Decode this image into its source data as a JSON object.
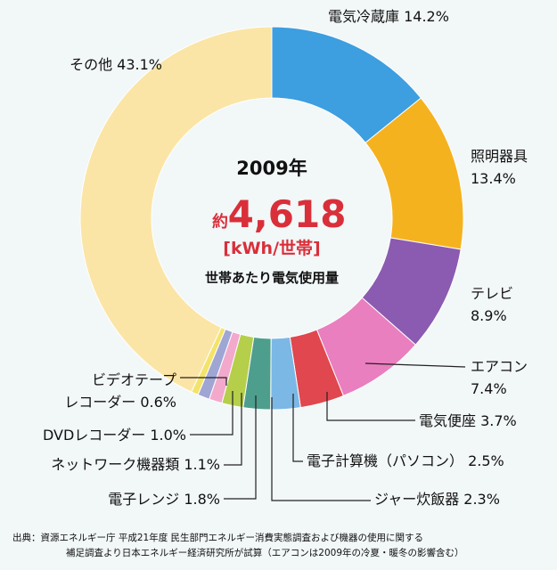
{
  "chart_data": {
    "type": "pie",
    "categories": [
      "電気冷蔵庫",
      "照明器具",
      "テレビ",
      "エアコン",
      "電気便座",
      "電子計算機（パソコン）",
      "ジャー炊飯器",
      "電子レンジ",
      "ネットワーク機器類",
      "DVDレコーダー",
      "ビデオテープ\nレコーダー",
      "その他"
    ],
    "values": [
      14.2,
      13.4,
      8.9,
      7.4,
      3.7,
      2.5,
      2.3,
      1.8,
      1.1,
      1.0,
      0.6,
      43.1
    ],
    "value_labels": [
      "14.2%",
      "13.4%",
      "8.9%",
      "7.4%",
      "3.7%",
      "2.5%",
      "2.3%",
      "1.8%",
      "1.1%",
      "1.0%",
      "0.6%",
      "43.1%"
    ],
    "colors": [
      "#3d9ee0",
      "#f5b21f",
      "#8a5bb0",
      "#e97fbf",
      "#e0474e",
      "#7bb8e6",
      "#4e9e8e",
      "#b5cf4a",
      "#f2a9cc",
      "#9fa6d4",
      "#f4e36a",
      "#fbe5a6"
    ],
    "donut": true,
    "center": {
      "year": "2009年",
      "prefix": "約",
      "value": "4,618",
      "unit": "[kWh/世帯]",
      "description": "世帯あたり電気使用量"
    }
  },
  "source_note": [
    "出典：資源エネルギー庁 平成21年度 民生部門エネルギー消費実態調査および機器の使用に関する",
    "補足調査より日本エネルギー経済研究所が試算（エアコンは2009年の冷夏・暖冬の影響含む）"
  ],
  "colors": {
    "background": "#f2f7f8",
    "accent": "#d92f3a"
  }
}
